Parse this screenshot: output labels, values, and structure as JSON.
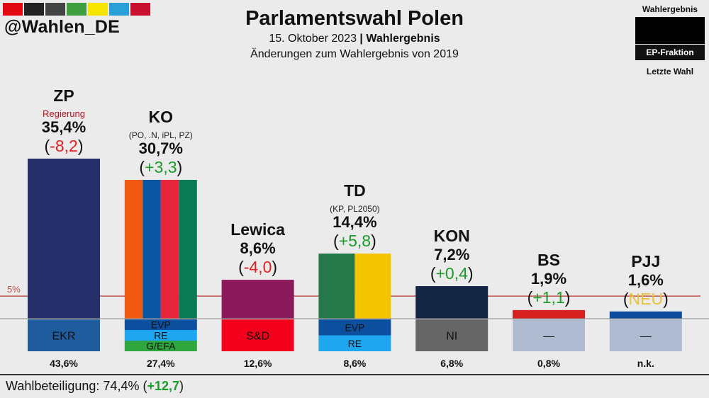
{
  "header": {
    "handle": "@Wahlen_DE",
    "title": "Parlamentswahl Polen",
    "date": "15. Oktober 2023",
    "separator": "|",
    "result_label": "Wahlergebnis",
    "subtitle": "Änderungen zum Wahlergebnis von 2019",
    "brand_colors": [
      "#e30613",
      "#222222",
      "#444444",
      "#3f9e3f",
      "#f6e500",
      "#2a9fd8",
      "#c8102e"
    ]
  },
  "legend": {
    "top": "Wahlergebnis",
    "ep": "EP-Fraktion",
    "bottom": "Letzte Wahl"
  },
  "turnout": {
    "label": "Wahlbeteiligung: 74,4% (",
    "change": "+12,7",
    "close": ")"
  },
  "chart_data": {
    "type": "bar",
    "title": "Parlamentswahl Polen",
    "ylim": [
      0,
      40
    ],
    "threshold": {
      "value": 5,
      "label": "5%",
      "color": "#c0504d"
    },
    "parties": [
      {
        "name": "ZP",
        "note": "Regierung",
        "value": 35.4,
        "value_label": "35,4%",
        "change": "-8,2",
        "change_color": "#e02020",
        "colors": [
          "#25306b"
        ],
        "ep": [
          {
            "label": "EKR",
            "color": "#1f5c9e",
            "text": "#111111"
          }
        ],
        "previous": "43,6%"
      },
      {
        "name": "KO",
        "sub": "(PO, .N, iPL, PZ)",
        "value": 30.7,
        "value_label": "30,7%",
        "change": "+3,3",
        "change_color": "#1a9c2a",
        "colors": [
          "#f25a13",
          "#0b56a4",
          "#e8253a",
          "#0a7a55"
        ],
        "ep": [
          {
            "label": "EVP",
            "color": "#0b4f9e",
            "text": "#111111"
          },
          {
            "label": "RE",
            "color": "#1ea6f0",
            "text": "#111111"
          },
          {
            "label": "G/EFA",
            "color": "#2ea63e",
            "text": "#111111"
          }
        ],
        "previous": "27,4%"
      },
      {
        "name": "Lewica",
        "value": 8.6,
        "value_label": "8,6%",
        "change": "-4,0",
        "change_color": "#e02020",
        "colors": [
          "#8a1a5a"
        ],
        "ep": [
          {
            "label": "S&D",
            "color": "#f2001c",
            "text": "#111111"
          }
        ],
        "previous": "12,6%"
      },
      {
        "name": "TD",
        "sub": "(KP, PL2050)",
        "value": 14.4,
        "value_label": "14,4%",
        "change": "+5,8",
        "change_color": "#1a9c2a",
        "colors": [
          "#25784a",
          "#f5c400"
        ],
        "ep": [
          {
            "label": "EVP",
            "color": "#0b4f9e",
            "text": "#111111"
          },
          {
            "label": "RE",
            "color": "#1ea6f0",
            "text": "#111111"
          }
        ],
        "previous": "8,6%"
      },
      {
        "name": "KON",
        "value": 7.2,
        "value_label": "7,2%",
        "change": "+0,4",
        "change_color": "#1a9c2a",
        "colors": [
          "#152544"
        ],
        "ep": [
          {
            "label": "NI",
            "color": "#666666",
            "text": "#111111"
          }
        ],
        "previous": "6,8%"
      },
      {
        "name": "BS",
        "value": 1.9,
        "value_label": "1,9%",
        "change": "+1,1",
        "change_color": "#1a9c2a",
        "colors": [
          "#d62020"
        ],
        "ep": [
          {
            "label": "—",
            "color": "#aebbd0",
            "text": "#111111"
          }
        ],
        "previous": "0,8%"
      },
      {
        "name": "PJJ",
        "value": 1.6,
        "value_label": "1,6%",
        "change": "NEU",
        "change_color": "#e8c23a",
        "colors": [
          "#0d4c9c"
        ],
        "ep": [
          {
            "label": "—",
            "color": "#aebbd0",
            "text": "#111111"
          }
        ],
        "previous": "n.k."
      }
    ]
  }
}
